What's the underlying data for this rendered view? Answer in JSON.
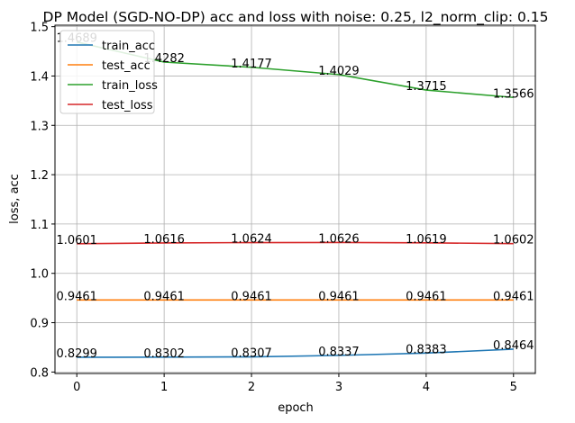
{
  "chart_data": {
    "type": "line",
    "title": "DP Model (SGD-NO-DP) acc and loss with noise: 0.25, l2_norm_clip: 0.15",
    "xlabel": "epoch",
    "ylabel": "loss, acc",
    "x": [
      0,
      1,
      2,
      3,
      4,
      5
    ],
    "xticks": [
      "0",
      "1",
      "2",
      "3",
      "4",
      "5"
    ],
    "yticks": [
      "0.8",
      "0.9",
      "1.0",
      "1.1",
      "1.2",
      "1.3",
      "1.4",
      "1.5"
    ],
    "xlim": [
      -0.25,
      5.25
    ],
    "ylim": [
      0.797,
      1.503
    ],
    "grid": true,
    "legend_position": "top-left",
    "series": [
      {
        "name": "train_acc",
        "color": "#1f77b4",
        "values": [
          0.8299,
          0.8302,
          0.8307,
          0.8337,
          0.8383,
          0.8464
        ],
        "labels": [
          "0.8299",
          "0.8302",
          "0.8307",
          "0.8337",
          "0.8383",
          "0.8464"
        ]
      },
      {
        "name": "test_acc",
        "color": "#ff7f0e",
        "values": [
          0.9461,
          0.9461,
          0.9461,
          0.9461,
          0.9461,
          0.9461
        ],
        "labels": [
          "0.9461",
          "0.9461",
          "0.9461",
          "0.9461",
          "0.9461",
          "0.9461"
        ]
      },
      {
        "name": "train_loss",
        "color": "#2ca02c",
        "values": [
          1.4689,
          1.4282,
          1.4177,
          1.4029,
          1.3715,
          1.3566
        ],
        "labels": [
          "1.4689",
          "1.4282",
          "1.4177",
          "1.4029",
          "1.3715",
          "1.3566"
        ]
      },
      {
        "name": "test_loss",
        "color": "#d62728",
        "values": [
          1.0601,
          1.0616,
          1.0624,
          1.0626,
          1.0619,
          1.0602
        ],
        "labels": [
          "1.0601",
          "1.0616",
          "1.0624",
          "1.0626",
          "1.0619",
          "1.0602"
        ]
      }
    ]
  }
}
